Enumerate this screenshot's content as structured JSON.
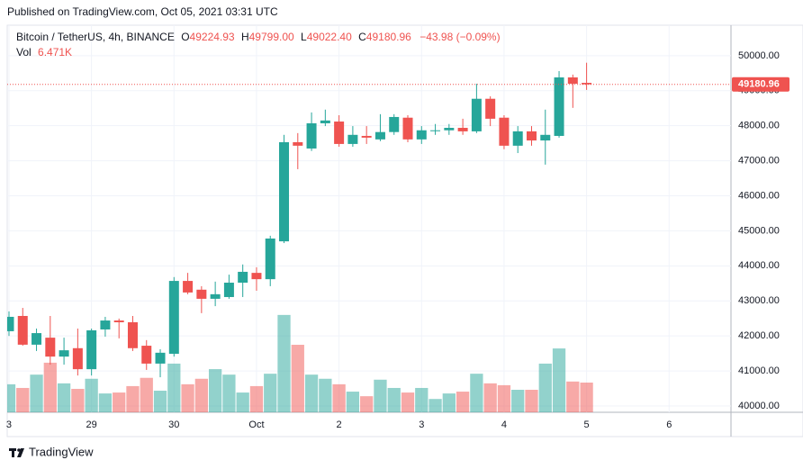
{
  "chart_data": {
    "type": "candlestick",
    "published": "Published on TradingView.com, Oct 05, 2021 03:31 UTC",
    "title": "Bitcoin / TetherUS, 4h, BINANCE",
    "legend": {
      "items": [
        {
          "key": "O",
          "value": "49224.93"
        },
        {
          "key": "H",
          "value": "49799.00"
        },
        {
          "key": "L",
          "value": "49022.40"
        },
        {
          "key": "C",
          "value": "49180.96"
        }
      ],
      "change": "−43.98 (−0.09%)",
      "vol_key": "Vol",
      "vol": "6.471K"
    },
    "brand": "TradingView",
    "up_color": "#26a69a",
    "down_color": "#ef5350",
    "grid": true,
    "x": [
      0,
      1,
      2,
      3,
      4,
      5,
      6,
      7,
      8,
      9,
      10,
      11,
      12,
      13,
      14,
      15,
      16,
      17,
      18,
      19,
      20,
      21,
      22,
      23,
      24,
      25,
      26,
      27,
      28,
      29,
      30,
      31,
      32,
      33,
      34,
      35,
      36,
      37,
      38,
      39,
      40,
      41,
      42
    ],
    "open": [
      42134,
      42570,
      41750,
      41950,
      41410,
      41650,
      41050,
      42185,
      42440,
      42390,
      41720,
      41210,
      41490,
      43570,
      43320,
      43060,
      43110,
      43520,
      43800,
      43620,
      44700,
      47530,
      47350,
      48070,
      48120,
      47480,
      47710,
      47610,
      47820,
      48230,
      47610,
      47850,
      47870,
      47940,
      47840,
      48770,
      48230,
      47430,
      47840,
      47580,
      47710,
      49380,
      49224.93
    ],
    "high": [
      42700,
      42800,
      42210,
      42570,
      41950,
      42210,
      42210,
      42545,
      42495,
      42570,
      41880,
      41620,
      43680,
      43800,
      43420,
      43550,
      43750,
      44040,
      43960,
      44860,
      47740,
      47790,
      48380,
      48460,
      48300,
      47990,
      47990,
      48330,
      48330,
      48300,
      47990,
      48050,
      48050,
      48200,
      49200,
      48840,
      48300,
      47990,
      47990,
      48460,
      49560,
      49460,
      49799
    ],
    "low": [
      42000,
      41720,
      41570,
      41180,
      41180,
      40870,
      40870,
      41980,
      41930,
      41570,
      41030,
      40820,
      41410,
      43190,
      42650,
      42850,
      43060,
      43110,
      43290,
      43420,
      44650,
      46760,
      47280,
      47990,
      47400,
      47400,
      47480,
      47560,
      47740,
      47530,
      47480,
      47740,
      47740,
      47740,
      47790,
      47990,
      47330,
      47220,
      47430,
      46890,
      47660,
      48510,
      49022.4
    ],
    "close": [
      42545,
      41750,
      42080,
      41410,
      41590,
      41050,
      42160,
      42440,
      42390,
      41650,
      41210,
      41520,
      43570,
      43240,
      43060,
      43190,
      43520,
      43830,
      43620,
      44780,
      47530,
      47430,
      48070,
      48150,
      47480,
      47740,
      47660,
      47820,
      48250,
      47610,
      47870,
      47870,
      47940,
      47840,
      48770,
      48200,
      47430,
      47840,
      47580,
      47740,
      49380,
      49200,
      49180.96
    ],
    "volume": [
      6100,
      5300,
      8200,
      10800,
      6300,
      5100,
      7300,
      4100,
      4300,
      5700,
      7500,
      4700,
      10600,
      6100,
      7300,
      9400,
      8200,
      4300,
      5700,
      8400,
      21200,
      14700,
      8200,
      7300,
      6100,
      4500,
      3500,
      7100,
      5300,
      4300,
      5300,
      2900,
      4100,
      4500,
      8400,
      6300,
      5900,
      4900,
      4900,
      10600,
      13900,
      6700,
      6471
    ],
    "last_price_label": "49180.96",
    "xlim": [
      -0.13,
      52.5
    ],
    "xticks": [
      {
        "value": 0,
        "label": "3"
      },
      {
        "value": 6,
        "label": "29"
      },
      {
        "value": 12,
        "label": "30"
      },
      {
        "value": 18,
        "label": "Oct"
      },
      {
        "value": 24,
        "label": "2"
      },
      {
        "value": 30,
        "label": "3"
      },
      {
        "value": 36,
        "label": "4"
      },
      {
        "value": 42,
        "label": "5"
      },
      {
        "value": 48,
        "label": "6"
      }
    ],
    "ylim": [
      39820,
      50870
    ],
    "yticks": [
      {
        "value": 40000,
        "label": "40000.00"
      },
      {
        "value": 41000,
        "label": "41000.00"
      },
      {
        "value": 42000,
        "label": "42000.00"
      },
      {
        "value": 43000,
        "label": "43000.00"
      },
      {
        "value": 44000,
        "label": "44000.00"
      },
      {
        "value": 45000,
        "label": "45000.00"
      },
      {
        "value": 46000,
        "label": "46000.00"
      },
      {
        "value": 47000,
        "label": "47000.00"
      },
      {
        "value": 48000,
        "label": "48000.00"
      },
      {
        "value": 49000,
        "label": "49000.00"
      },
      {
        "value": 50000,
        "label": "50000.00"
      }
    ],
    "vlim": [
      0,
      84300
    ]
  }
}
